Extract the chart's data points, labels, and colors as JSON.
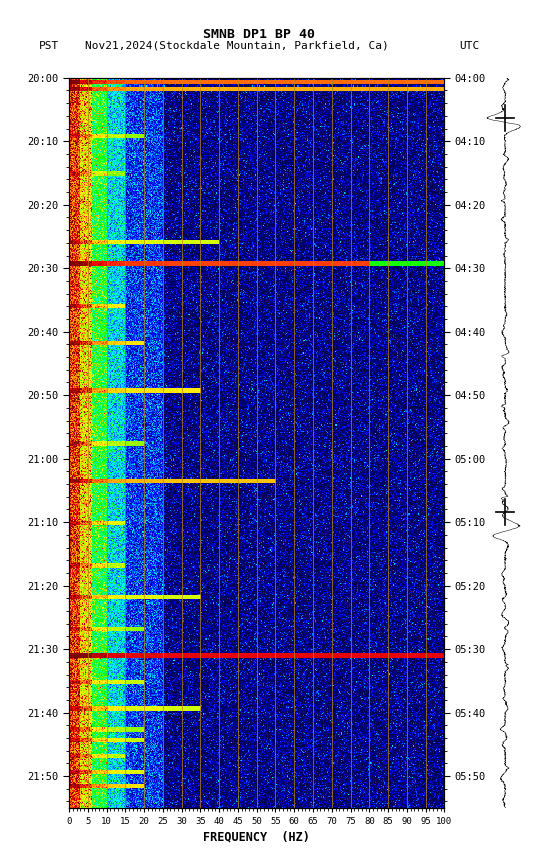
{
  "title": "SMNB DP1 BP 40",
  "subtitle_left": "PST",
  "subtitle_mid": "Nov21,2024(Stockdale Mountain, Parkfield, Ca)",
  "subtitle_right": "UTC",
  "xlabel": "FREQUENCY  (HZ)",
  "freq_min": 0,
  "freq_max": 100,
  "freq_ticks": [
    0,
    5,
    10,
    15,
    20,
    25,
    30,
    35,
    40,
    45,
    50,
    55,
    60,
    65,
    70,
    75,
    80,
    85,
    90,
    95,
    100
  ],
  "left_time_labels": [
    "20:00",
    "20:10",
    "20:20",
    "20:30",
    "20:40",
    "20:50",
    "21:00",
    "21:10",
    "21:20",
    "21:30",
    "21:40",
    "21:50"
  ],
  "right_time_labels": [
    "04:00",
    "04:10",
    "04:20",
    "04:30",
    "04:40",
    "04:50",
    "05:00",
    "05:10",
    "05:20",
    "05:30",
    "05:40",
    "05:50"
  ],
  "pst_minutes": [
    0,
    10,
    20,
    30,
    40,
    50,
    60,
    70,
    80,
    90,
    100,
    110
  ],
  "total_minutes": 115,
  "vertical_line_freqs": [
    5,
    10,
    15,
    20,
    25,
    30,
    35,
    40,
    45,
    50,
    55,
    60,
    65,
    70,
    75,
    80,
    85,
    90,
    95
  ],
  "vline_color": "#b8860b",
  "background_color": "#ffffff",
  "font_family": "monospace"
}
